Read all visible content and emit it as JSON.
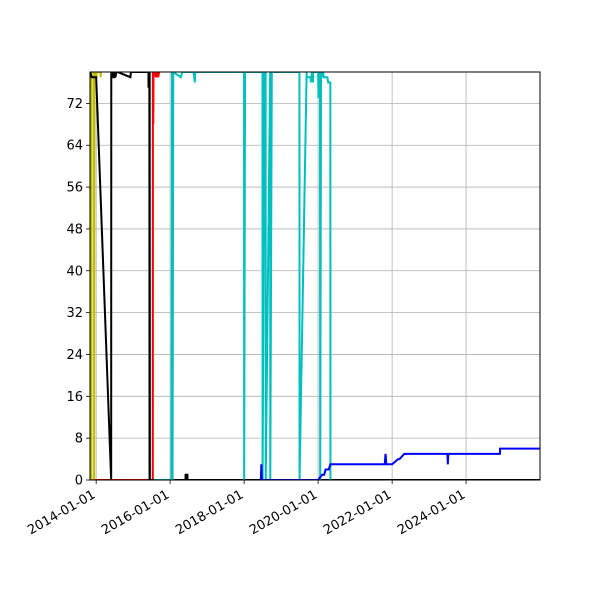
{
  "chart_data": {
    "type": "line",
    "title": "",
    "xlabel": "",
    "ylabel": "",
    "grid": true,
    "legend": "none",
    "xlim": [
      "2013-11-01",
      "2025-12-31"
    ],
    "ylim": [
      0,
      78
    ],
    "x_ticks": [
      "2014-01-01",
      "2016-01-01",
      "2018-01-01",
      "2020-01-01",
      "2022-01-01",
      "2024-01-01"
    ],
    "y_ticks": [
      0,
      8,
      16,
      24,
      32,
      40,
      48,
      56,
      64,
      72
    ],
    "series": [
      {
        "color": "#ff0000",
        "x": [
          "2013-11-01",
          "2013-11-12",
          "2013-11-13",
          "2015-07-14",
          "2015-07-15",
          "2015-07-19",
          "2015-07-21",
          "2015-08-01",
          "2015-08-15",
          "2015-08-25",
          "2015-09-05",
          "2015-09-15",
          "2015-09-20"
        ],
        "y": [
          1,
          1,
          0,
          0,
          78,
          68,
          78,
          78,
          77,
          78,
          77,
          78,
          78
        ]
      },
      {
        "color": "#bfbf00",
        "x": [
          "2013-11-15",
          "2013-11-16",
          "2013-11-20",
          "2013-12-10",
          "2013-12-12",
          "2013-12-14",
          "2014-01-01",
          "2014-01-04",
          "2014-01-06",
          "2014-01-08",
          "2014-02-10",
          "2014-02-15",
          "2014-02-16",
          "2014-02-20"
        ],
        "y": [
          0,
          78,
          78,
          78,
          0,
          78,
          77,
          77,
          78,
          78,
          78,
          77,
          78,
          78
        ]
      },
      {
        "color": "#000000",
        "x": [
          "2013-11-01",
          "2013-11-20",
          "2014-01-01",
          "2014-05-29",
          "2014-05-30",
          "2014-06-05",
          "2014-06-15",
          "2014-06-20",
          "2014-07-01",
          "2014-07-05",
          "2014-07-10",
          "2014-07-20",
          "2014-08-01",
          "2014-12-05",
          "2014-12-10",
          "2015-05-10",
          "2015-06-01",
          "2015-06-02",
          "2015-06-06",
          "2015-06-10",
          "2015-06-12",
          "2015-06-13",
          "2015-06-15",
          "2015-07-01",
          "2016-06-01",
          "2016-06-02",
          "2016-06-20",
          "2016-06-21",
          "2025-12-31"
        ],
        "y": [
          78,
          77,
          77,
          0,
          78,
          77,
          78,
          77,
          77,
          78,
          77,
          78,
          78,
          77,
          78,
          78,
          78,
          75,
          78,
          78,
          0,
          78,
          0,
          0,
          0,
          1,
          1,
          0,
          0
        ]
      },
      {
        "color": "#00bfbf",
        "x": [
          "2015-08-01",
          "2016-01-15",
          "2016-01-20",
          "2016-01-25",
          "2016-02-01",
          "2016-04-15",
          "2016-05-01",
          "2016-08-20",
          "2016-09-01",
          "2016-09-05",
          "2016-10-01",
          "2017-11-01",
          "2017-12-31",
          "2018-01-01",
          "2018-01-10",
          "2018-06-01",
          "2018-07-01",
          "2018-07-02",
          "2018-07-20",
          "2018-08-01",
          "2018-08-02",
          "2018-09-15",
          "2018-09-16",
          "2018-10-01",
          "2018-10-02",
          "2019-07-01",
          "2019-07-02",
          "2019-09-10",
          "2019-09-11",
          "2019-10-20",
          "2019-10-21",
          "2019-11-01",
          "2019-11-10",
          "2019-11-12",
          "2019-11-14",
          "2019-12-01",
          "2020-01-01",
          "2020-01-05",
          "2020-01-10",
          "2020-01-20",
          "2020-01-22",
          "2020-01-30",
          "2020-02-01",
          "2020-02-10",
          "2020-02-12",
          "2020-02-15",
          "2020-02-20",
          "2020-02-25",
          "2020-03-01",
          "2020-03-05",
          "2020-04-01",
          "2020-04-10",
          "2020-04-15",
          "2020-05-01",
          "2020-05-02"
        ],
        "y": [
          0,
          0,
          78,
          0,
          78,
          77,
          78,
          78,
          76,
          78,
          78,
          78,
          78,
          0,
          78,
          78,
          78,
          0,
          78,
          78,
          0,
          78,
          0,
          78,
          78,
          78,
          0,
          78,
          77,
          77,
          76,
          78,
          78,
          76,
          78,
          78,
          78,
          73,
          78,
          78,
          0,
          78,
          77,
          78,
          77,
          78,
          78,
          77,
          77,
          77,
          77,
          76,
          76,
          76,
          0
        ]
      },
      {
        "color": "#0000ff",
        "x": [
          "2018-06-15",
          "2018-06-20",
          "2018-06-25",
          "2018-07-01",
          "2019-11-01",
          "2020-01-01",
          "2020-02-10",
          "2020-03-01",
          "2020-03-15",
          "2020-04-15",
          "2020-05-01",
          "2021-10-20",
          "2021-10-28",
          "2021-11-05",
          "2021-11-15",
          "2022-01-01",
          "2022-03-01",
          "2022-03-15",
          "2022-05-01",
          "2022-05-10",
          "2023-07-01",
          "2023-07-05",
          "2023-07-10",
          "2023-07-15",
          "2024-12-01",
          "2024-12-02",
          "2025-12-31"
        ],
        "y": [
          0,
          3,
          0,
          0,
          0,
          0,
          1,
          1,
          2,
          2,
          3,
          3,
          5,
          3,
          3,
          3,
          4,
          4,
          5,
          5,
          5,
          3,
          5,
          5,
          5,
          6,
          6
        ]
      }
    ]
  }
}
